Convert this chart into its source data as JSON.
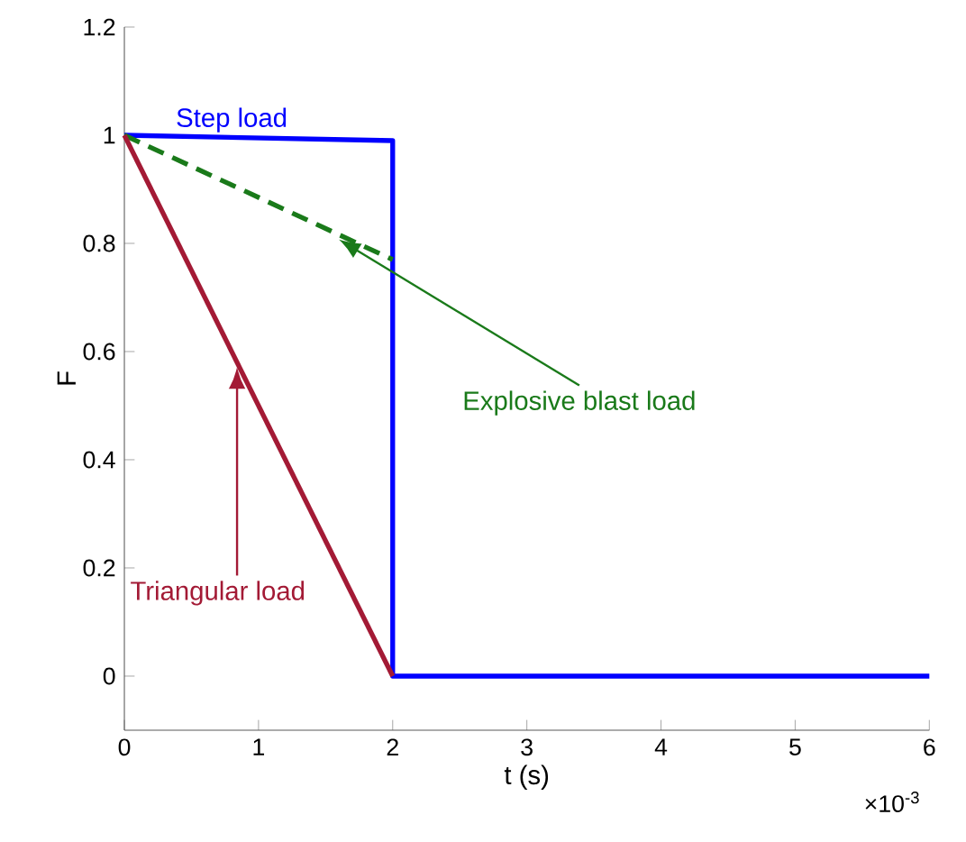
{
  "chart_data": {
    "type": "line",
    "xlabel": "t (s)",
    "ylabel": "F",
    "xlim": [
      0,
      6
    ],
    "ylim": [
      -0.1,
      1.2
    ],
    "xticks": [
      0,
      1,
      2,
      3,
      4,
      5,
      6
    ],
    "yticks": [
      0,
      0.2,
      0.4,
      0.6,
      0.8,
      1,
      1.2
    ],
    "grid": false,
    "marker": "none",
    "series": [
      {
        "name": "Step load",
        "color": "#0000ff",
        "x": [
          0,
          2,
          2,
          6
        ],
        "values": [
          1,
          0.99,
          0,
          0
        ],
        "line_style": "solid"
      },
      {
        "name": "Explosive blast load",
        "color": "#1a7a1a",
        "x": [
          0,
          2
        ],
        "values": [
          1,
          0.77
        ],
        "line_style": "dashed"
      },
      {
        "name": "Triangular load",
        "color": "#a31a35",
        "x": [
          0,
          2
        ],
        "values": [
          1,
          0
        ],
        "line_style": "solid"
      }
    ],
    "annotations": [
      "×10$^{-3}$"
    ]
  }
}
